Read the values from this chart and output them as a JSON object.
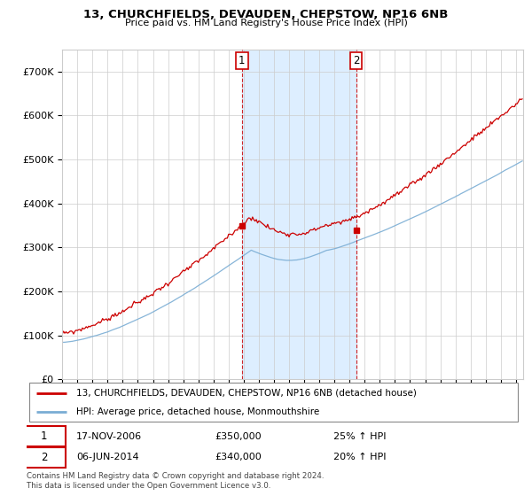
{
  "title": "13, CHURCHFIELDS, DEVAUDEN, CHEPSTOW, NP16 6NB",
  "subtitle": "Price paid vs. HM Land Registry's House Price Index (HPI)",
  "legend_line1": "13, CHURCHFIELDS, DEVAUDEN, CHEPSTOW, NP16 6NB (detached house)",
  "legend_line2": "HPI: Average price, detached house, Monmouthshire",
  "transaction1_date": "17-NOV-2006",
  "transaction1_price": "£350,000",
  "transaction1_pct": "25% ↑ HPI",
  "transaction2_date": "06-JUN-2014",
  "transaction2_price": "£340,000",
  "transaction2_pct": "20% ↑ HPI",
  "footer": "Contains HM Land Registry data © Crown copyright and database right 2024.\nThis data is licensed under the Open Government Licence v3.0.",
  "red_color": "#cc0000",
  "blue_color": "#7aadd4",
  "shaded_color": "#ddeeff",
  "grid_color": "#cccccc",
  "background_color": "#ffffff",
  "ylim": [
    0,
    750000
  ],
  "yticks": [
    0,
    100000,
    200000,
    300000,
    400000,
    500000,
    600000,
    700000
  ],
  "ytick_labels": [
    "£0",
    "£100K",
    "£200K",
    "£300K",
    "£400K",
    "£500K",
    "£600K",
    "£700K"
  ],
  "transaction1_year": 2006.88,
  "transaction2_year": 2014.43,
  "marker1_price": 350000,
  "marker2_price": 340000
}
